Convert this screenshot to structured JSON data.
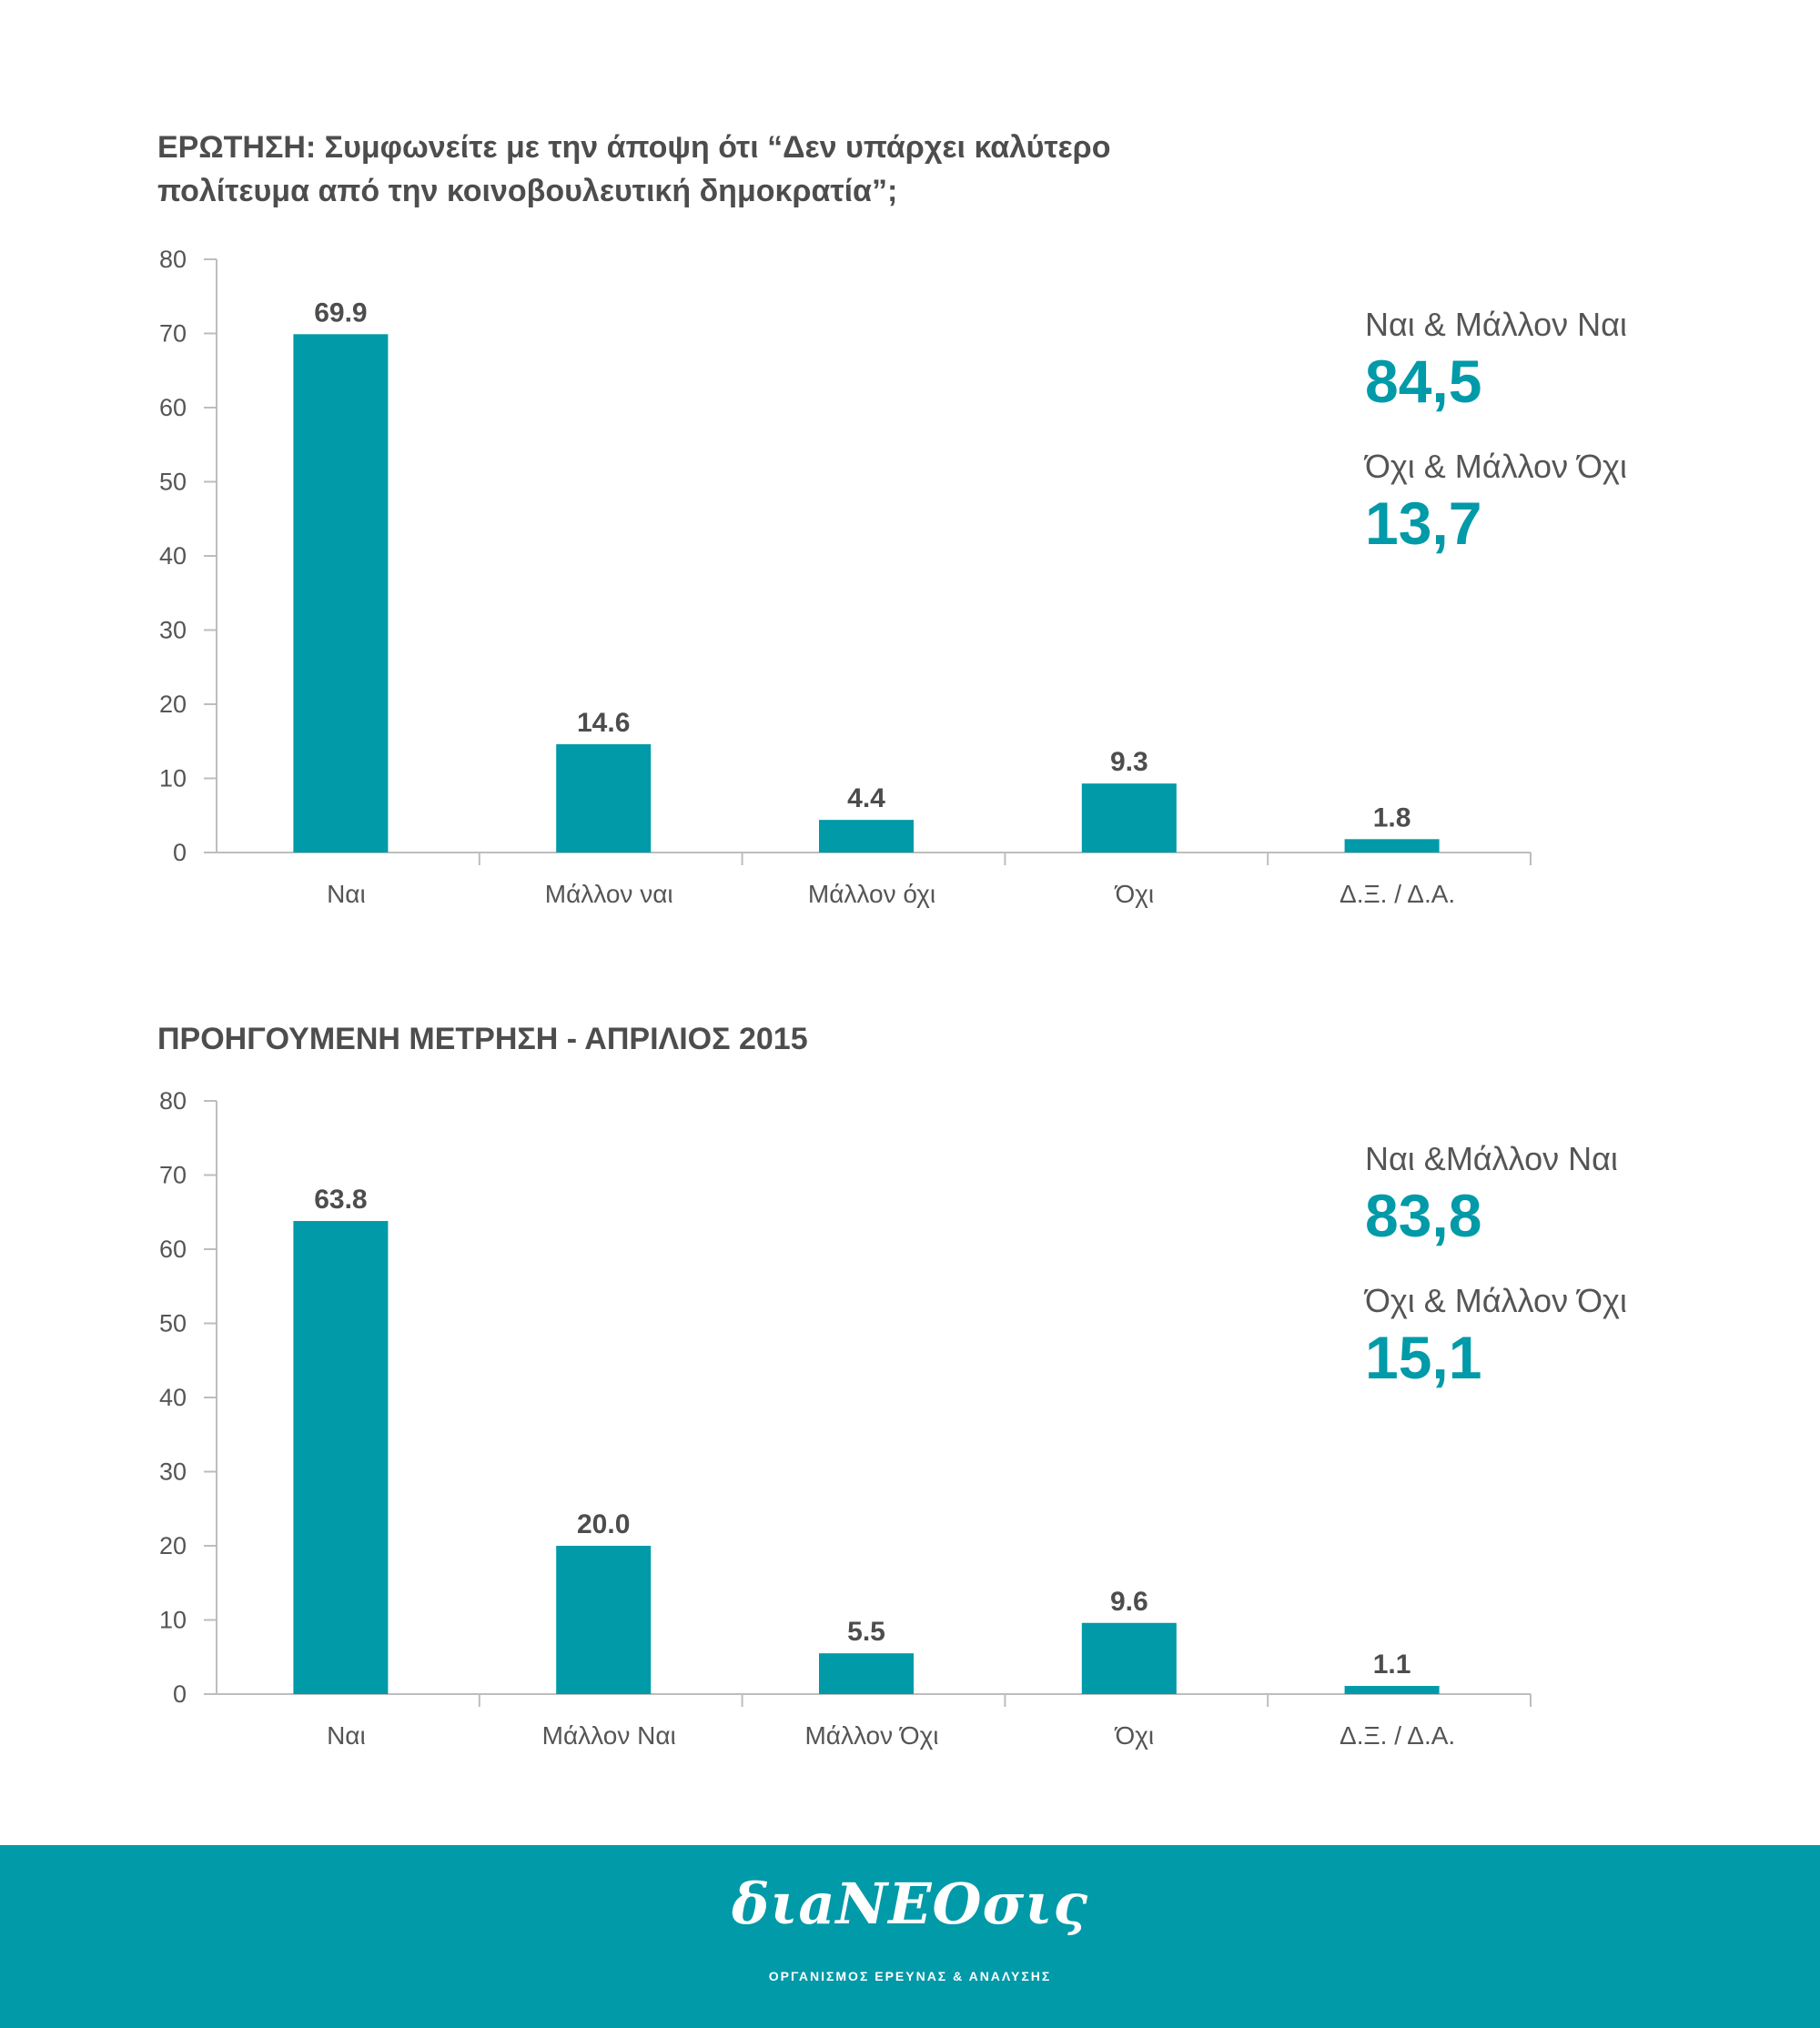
{
  "chart_data": [
    {
      "type": "bar",
      "title": "ΕΡΩΤΗΣΗ: Συμφωνείτε με την άποψη ότι “Δεν υπάρχει καλύτερο πολίτευμα από την κοινοβουλευτική δημοκρατία”;",
      "categories": [
        "Ναι",
        "Μάλλον ναι",
        "Μάλλον όχι",
        "Όχι",
        "Δ.Ξ. / Δ.Α."
      ],
      "values": [
        69.9,
        14.6,
        4.4,
        9.3,
        1.8
      ],
      "value_labels": [
        "69.9",
        "14.6",
        "4.4",
        "9.3",
        "1.8"
      ],
      "yticks": [
        "0",
        "10",
        "20",
        "30",
        "40",
        "50",
        "60",
        "70",
        "80"
      ],
      "ylim": [
        0,
        80
      ],
      "color": "#009aa8",
      "grid": false,
      "summary": [
        {
          "label": "Ναι & Μάλλον Ναι",
          "value": "84,5"
        },
        {
          "label": "Όχι & Μάλλον Όχι",
          "value": "13,7"
        }
      ]
    },
    {
      "type": "bar",
      "title": "ΠΡΟΗΓΟΥΜΕΝΗ ΜΕΤΡΗΣΗ - ΑΠΡΙΛΙΟΣ 2015",
      "categories": [
        "Ναι",
        "Μάλλον Ναι",
        "Μάλλον Όχι",
        "Όχι",
        "Δ.Ξ. / Δ.Α."
      ],
      "values": [
        63.8,
        20.0,
        5.5,
        9.6,
        1.1
      ],
      "value_labels": [
        "63.8",
        "20.0",
        "5.5",
        "9.6",
        "1.1"
      ],
      "yticks": [
        "0",
        "10",
        "20",
        "30",
        "40",
        "50",
        "60",
        "70",
        "80"
      ],
      "ylim": [
        0,
        80
      ],
      "color": "#009aa8",
      "grid": false,
      "summary": [
        {
          "label": "Ναι &Μάλλον Ναι",
          "value": "83,8"
        },
        {
          "label": "Όχι & Μάλλον Όχι",
          "value": "15,1"
        }
      ]
    }
  ],
  "footer": {
    "logo_text": "διaNEOσις",
    "subtitle": "ΟΡΓΑΝΙΣΜΟΣ ΕΡΕΥΝΑΣ & ΑΝΑΛΥΣΗΣ",
    "color": "#009aa8"
  }
}
